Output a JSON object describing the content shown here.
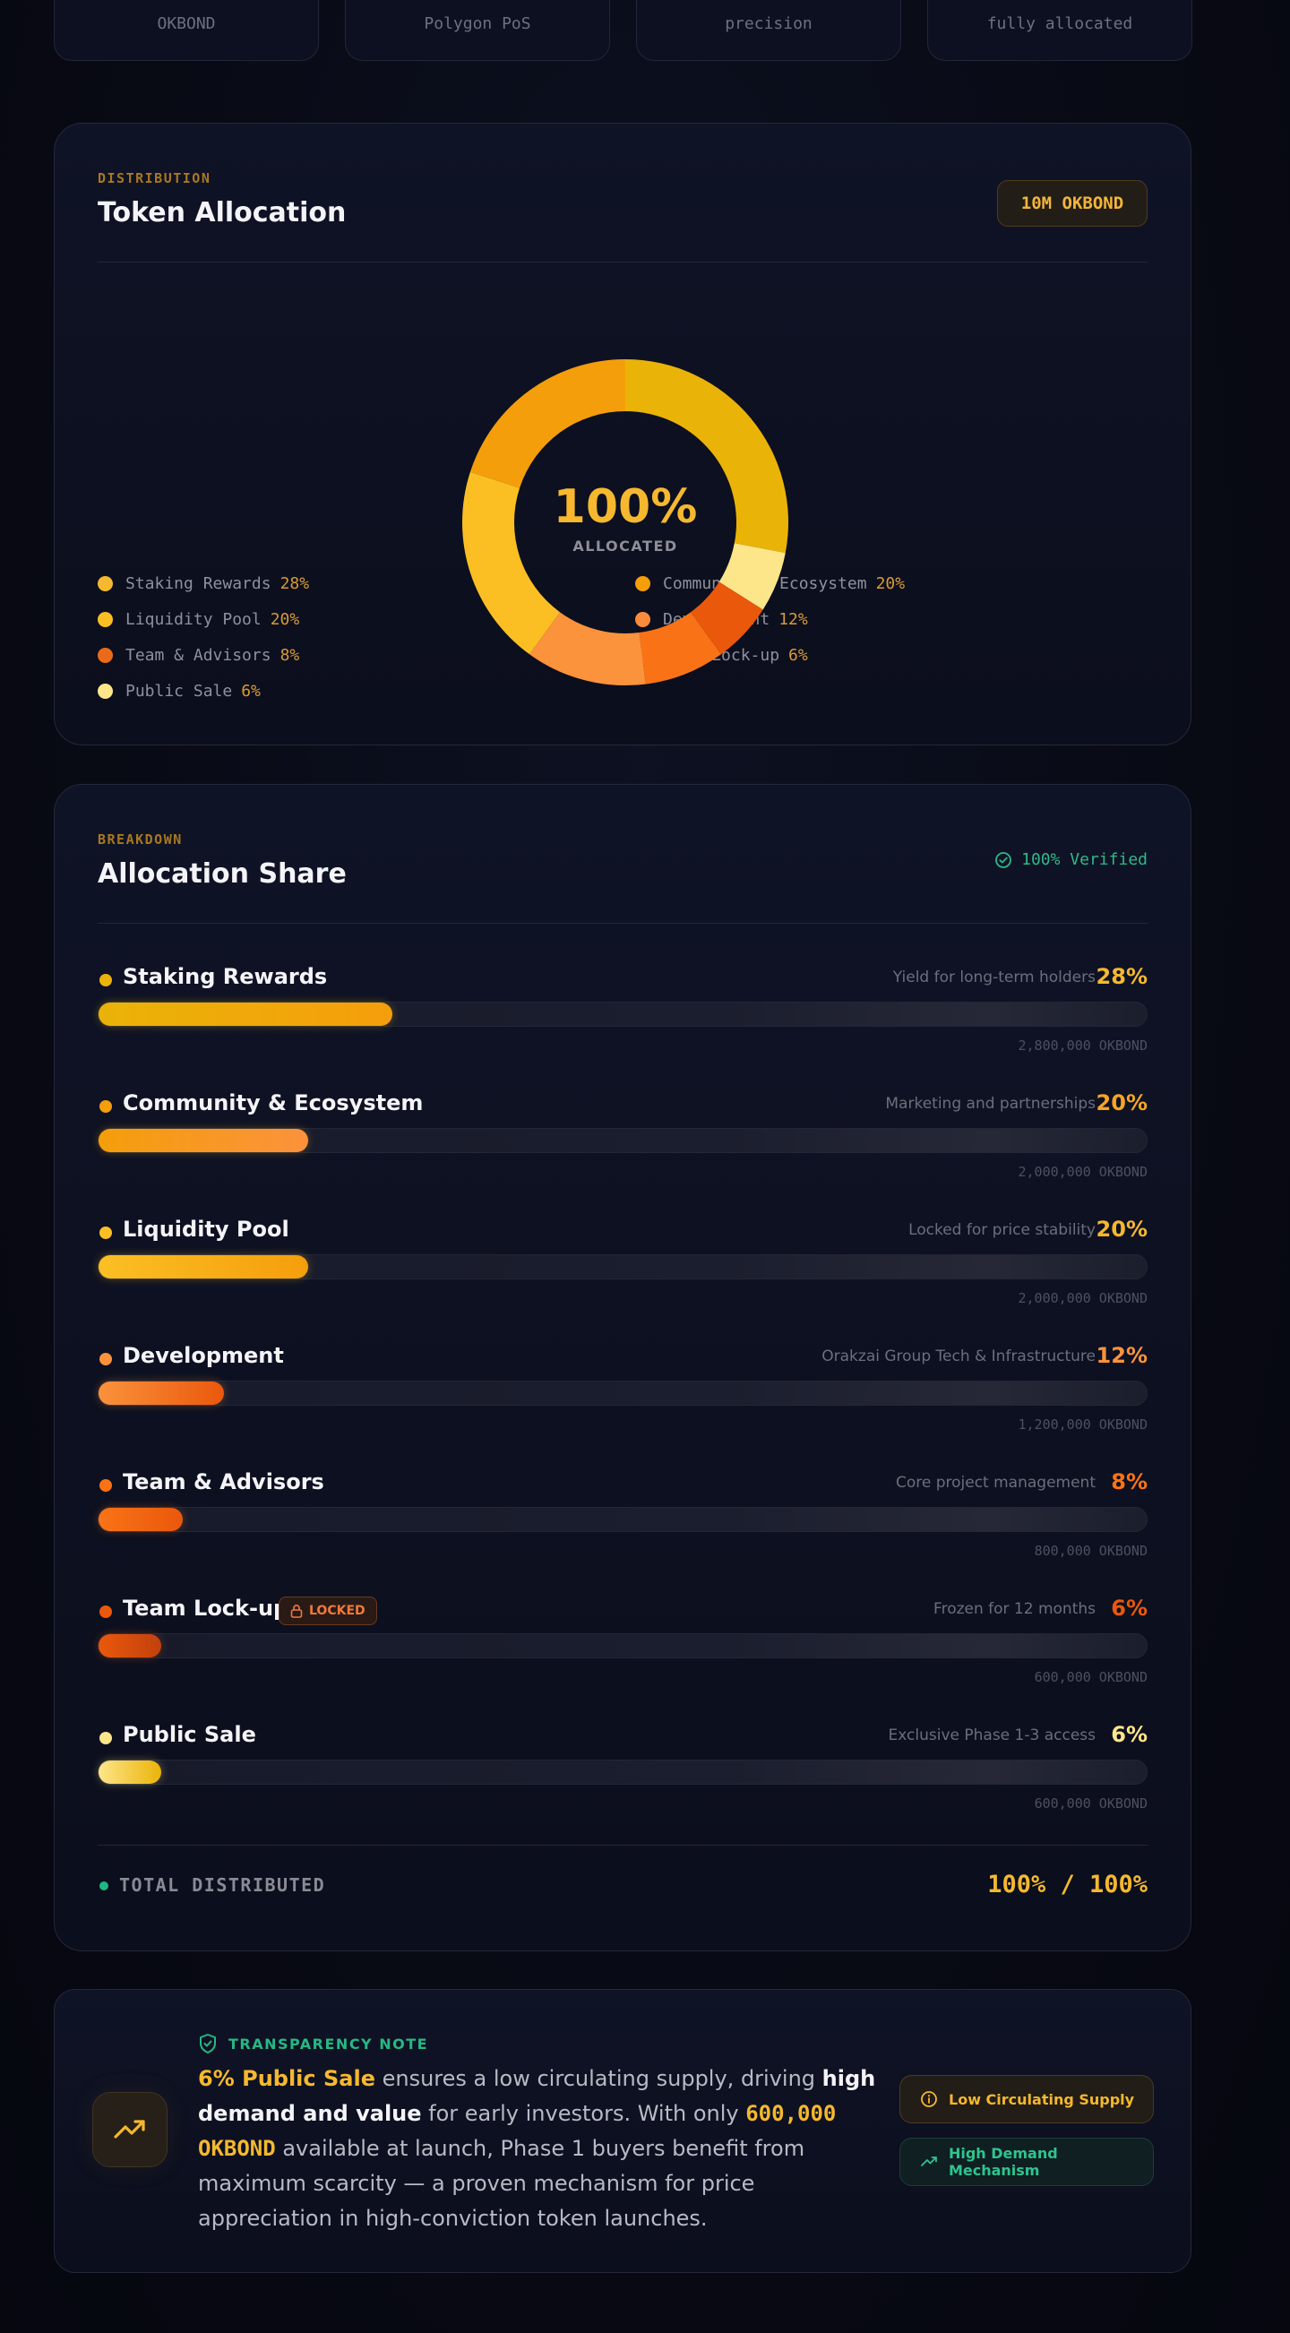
{
  "stats": [
    "OKBOND",
    "Polygon PoS",
    "precision",
    "fully allocated"
  ],
  "allocation": {
    "eyebrow": "DISTRIBUTION",
    "title": "Token Allocation",
    "supply_badge": "10M OKBOND",
    "center_value": "100%",
    "center_label": "ALLOCATED",
    "legend_left": [
      {
        "label": "Staking Rewards",
        "pct": "28%",
        "color": "#f5b82e"
      },
      {
        "label": "Liquidity Pool",
        "pct": "20%",
        "color": "#fbbf24"
      },
      {
        "label": "Team & Advisors",
        "pct": "8%",
        "color": "#ea6a1a"
      },
      {
        "label": "Public Sale",
        "pct": "6%",
        "color": "#fde68a"
      }
    ],
    "legend_right": [
      {
        "label": "Community & Ecosystem",
        "pct": "20%",
        "color": "#f59e0b"
      },
      {
        "label": "Development",
        "pct": "12%",
        "color": "#fb8c3c"
      },
      {
        "label": "Team Lock-up",
        "pct": "6%",
        "color": "#e0521a"
      }
    ],
    "segments": [
      {
        "name": "Staking Rewards",
        "value": 28,
        "color": "#eab308"
      },
      {
        "name": "Public Sale",
        "value": 6,
        "color": "#fde68a"
      },
      {
        "name": "Team Lock-up",
        "value": 6,
        "color": "#ea580c"
      },
      {
        "name": "Team & Advisors",
        "value": 8,
        "color": "#f97316"
      },
      {
        "name": "Development",
        "value": 12,
        "color": "#fb923c"
      },
      {
        "name": "Liquidity Pool",
        "value": 20,
        "color": "#fbbf24"
      },
      {
        "name": "Community & Ecosystem",
        "value": 20,
        "color": "#f59e0b"
      }
    ]
  },
  "breakdown": {
    "eyebrow": "BREAKDOWN",
    "title": "Allocation Share",
    "verified": "100% Verified",
    "rows": [
      {
        "name": "Staking Rewards",
        "desc": "Yield for long-term holders",
        "pct": "28%",
        "value": 28,
        "amount": "2,800,000 OKBOND",
        "dot": "#eab308",
        "pct_color": "#f5b82e",
        "fill_from": "#eab308",
        "fill_to": "#f59e0b"
      },
      {
        "name": "Community & Ecosystem",
        "desc": "Marketing and partnerships",
        "pct": "20%",
        "value": 20,
        "amount": "2,000,000 OKBOND",
        "dot": "#f59e0b",
        "pct_color": "#f5a524",
        "fill_from": "#f59e0b",
        "fill_to": "#fb923c"
      },
      {
        "name": "Liquidity Pool",
        "desc": "Locked for price stability",
        "pct": "20%",
        "value": 20,
        "amount": "2,000,000 OKBOND",
        "dot": "#fbbf24",
        "pct_color": "#f5b82e",
        "fill_from": "#fbbf24",
        "fill_to": "#f59e0b"
      },
      {
        "name": "Development",
        "desc": "Orakzai Group Tech & Infrastructure",
        "pct": "12%",
        "value": 12,
        "amount": "1,200,000 OKBOND",
        "dot": "#fb923c",
        "pct_color": "#fb923c",
        "fill_from": "#fb923c",
        "fill_to": "#ea580c"
      },
      {
        "name": "Team & Advisors",
        "desc": "Core project management",
        "pct": "8%",
        "value": 8,
        "amount": "800,000 OKBOND",
        "dot": "#f97316",
        "pct_color": "#f97316",
        "fill_from": "#f97316",
        "fill_to": "#ea580c"
      },
      {
        "name": "Team Lock-up",
        "desc": "Frozen for 12 months",
        "pct": "6%",
        "value": 6,
        "amount": "600,000 OKBOND",
        "dot": "#ea580c",
        "pct_color": "#ea580c",
        "fill_from": "#ea580c",
        "fill_to": "#c2410c",
        "badge": "LOCKED"
      },
      {
        "name": "Public Sale",
        "desc": "Exclusive Phase 1-3 access",
        "pct": "6%",
        "value": 6,
        "amount": "600,000 OKBOND",
        "dot": "#fde68a",
        "pct_color": "#fde68a",
        "fill_from": "#fde68a",
        "fill_to": "#eab308"
      }
    ],
    "total_label": "TOTAL DISTRIBUTED",
    "total_value": "100% / 100%"
  },
  "transparency": {
    "eyebrow": "TRANSPARENCY NOTE",
    "t1": "6% Public Sale",
    "t2": " ensures a low circulating supply, driving ",
    "t3": "high demand and value",
    "t4": " for early investors. With only ",
    "t5": "600,000 OKBOND",
    "t6": " available at launch, Phase 1 buyers benefit from maximum scarcity — a proven mechanism for price appreciation in high-conviction token launches.",
    "tag_supply": "Low Circulating Supply",
    "tag_demand": "High Demand Mechanism"
  }
}
